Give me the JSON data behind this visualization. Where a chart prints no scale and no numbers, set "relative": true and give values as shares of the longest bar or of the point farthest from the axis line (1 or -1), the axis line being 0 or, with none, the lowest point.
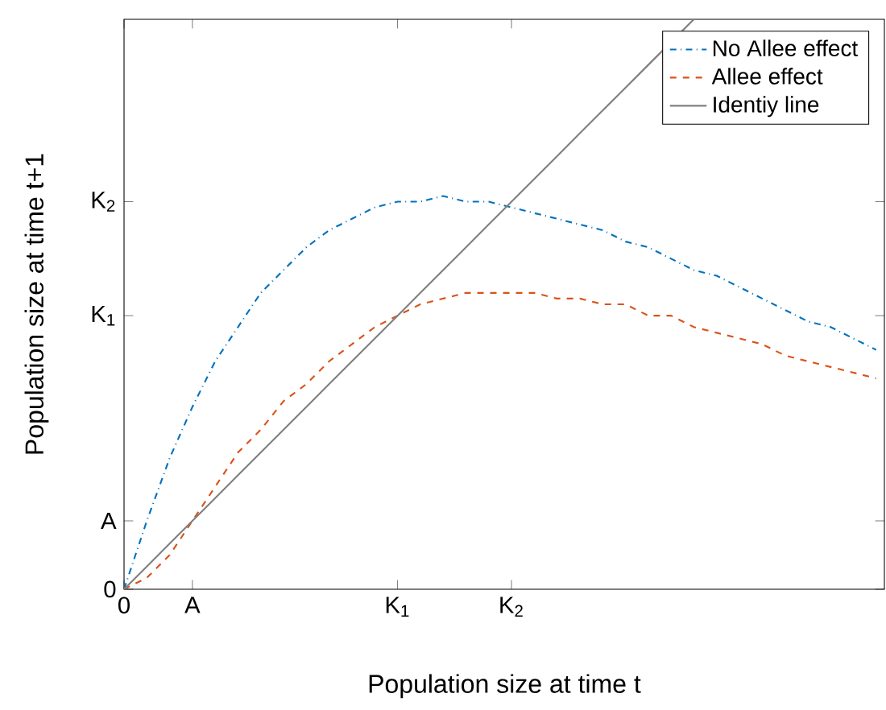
{
  "chart_data": {
    "type": "line",
    "relative": true,
    "xlabel": "Population size at time t",
    "ylabel": "Population size at time t+1",
    "categories": [
      "0",
      null,
      null,
      "A",
      null,
      null,
      null,
      null,
      null,
      null,
      null,
      null,
      "K$_{1}$",
      null,
      null,
      null,
      null,
      "K$_{2}$",
      null,
      null,
      null,
      null,
      null,
      null,
      null,
      null,
      null,
      null,
      null,
      null,
      null,
      null,
      null,
      null
    ],
    "annotations": [
      "0",
      "A",
      "K$_{1}$",
      "K$_{2}$"
    ],
    "legend": "top right",
    "series": [
      {
        "name": "No Allee effect",
        "color": "#0072bd",
        "line_style": "dashdot",
        "values": [
          0,
          0.12,
          0.23,
          0.32,
          0.4,
          0.46,
          0.52,
          0.56,
          0.6,
          0.63,
          0.65,
          0.67,
          0.68,
          0.68,
          0.69,
          0.68,
          0.68,
          0.67,
          0.66,
          0.65,
          0.64,
          0.63,
          0.61,
          0.6,
          0.58,
          0.56,
          0.55,
          0.53,
          0.51,
          0.49,
          0.47,
          0.46,
          0.44,
          0.42
        ]
      },
      {
        "name": "Allee effect",
        "color": "#d95319",
        "line_style": "dashed",
        "values": [
          0,
          0.02,
          0.06,
          0.12,
          0.18,
          0.24,
          0.28,
          0.33,
          0.36,
          0.4,
          0.43,
          0.46,
          0.48,
          0.5,
          0.51,
          0.52,
          0.52,
          0.52,
          0.52,
          0.51,
          0.51,
          0.5,
          0.5,
          0.48,
          0.48,
          0.46,
          0.45,
          0.44,
          0.43,
          0.41,
          0.4,
          0.39,
          0.38,
          0.37
        ]
      },
      {
        "name": "Identiy line",
        "color": "#808080",
        "line_style": "solid",
        "values": [
          0,
          0.04,
          0.08,
          0.12,
          0.16,
          0.2,
          0.24,
          0.28,
          0.32,
          0.36,
          0.4,
          0.44,
          0.48,
          0.52,
          0.56,
          0.6,
          0.64,
          0.68,
          0.72,
          0.76,
          0.8,
          0.84,
          0.88,
          0.92,
          null,
          1.0,
          null,
          null,
          null,
          null,
          null,
          null,
          null,
          null
        ]
      }
    ]
  }
}
